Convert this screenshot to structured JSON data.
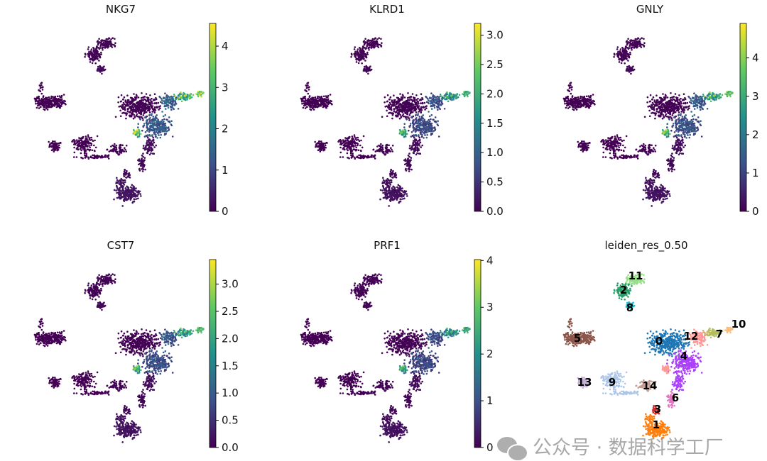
{
  "chart_data": [
    {
      "type": "scatter",
      "title": "NKG7",
      "colorbar": {
        "colormap": "viridis",
        "range": [
          0,
          4.55
        ],
        "ticks": [
          "0",
          "1",
          "2",
          "3",
          "4"
        ],
        "tick_values": [
          0,
          1,
          2,
          3,
          4
        ]
      }
    },
    {
      "type": "scatter",
      "title": "KLRD1",
      "colorbar": {
        "colormap": "viridis",
        "range": [
          0,
          3.2
        ],
        "ticks": [
          "0.0",
          "0.5",
          "1.0",
          "1.5",
          "2.0",
          "2.5",
          "3.0"
        ],
        "tick_values": [
          0,
          0.5,
          1,
          1.5,
          2,
          2.5,
          3
        ]
      }
    },
    {
      "type": "scatter",
      "title": "GNLY",
      "colorbar": {
        "colormap": "viridis",
        "range": [
          0,
          4.9
        ],
        "ticks": [
          "0",
          "1",
          "2",
          "3",
          "4"
        ],
        "tick_values": [
          0,
          1,
          2,
          3,
          4
        ]
      }
    },
    {
      "type": "scatter",
      "title": "CST7",
      "colorbar": {
        "colormap": "viridis",
        "range": [
          0,
          3.45
        ],
        "ticks": [
          "0.0",
          "0.5",
          "1.0",
          "1.5",
          "2.0",
          "2.5",
          "3.0"
        ],
        "tick_values": [
          0,
          0.5,
          1,
          1.5,
          2,
          2.5,
          3
        ]
      }
    },
    {
      "type": "scatter",
      "title": "PRF1",
      "colorbar": {
        "colormap": "viridis",
        "range": [
          0,
          4.02
        ],
        "ticks": [
          "0",
          "1",
          "2",
          "3",
          "4"
        ],
        "tick_values": [
          0,
          1,
          2,
          3,
          4
        ]
      }
    },
    {
      "type": "scatter",
      "title": "leiden_res_0.50",
      "categories": [
        "0",
        "1",
        "2",
        "3",
        "4",
        "5",
        "6",
        "7",
        "8",
        "9",
        "10",
        "11",
        "12",
        "13",
        "14"
      ],
      "colors": [
        "#1f77b4",
        "#ff7f0e",
        "#279e68",
        "#d62728",
        "#aa40fc",
        "#8c564b",
        "#e377c2",
        "#b5bd61",
        "#17becf",
        "#aec7e8",
        "#ffbb78",
        "#98df8a",
        "#ff9896",
        "#c5b0d5",
        "#c49c94"
      ]
    }
  ],
  "watermark": {
    "text": "公众号 · 数据科学工厂",
    "icon": "wechat-icon"
  }
}
